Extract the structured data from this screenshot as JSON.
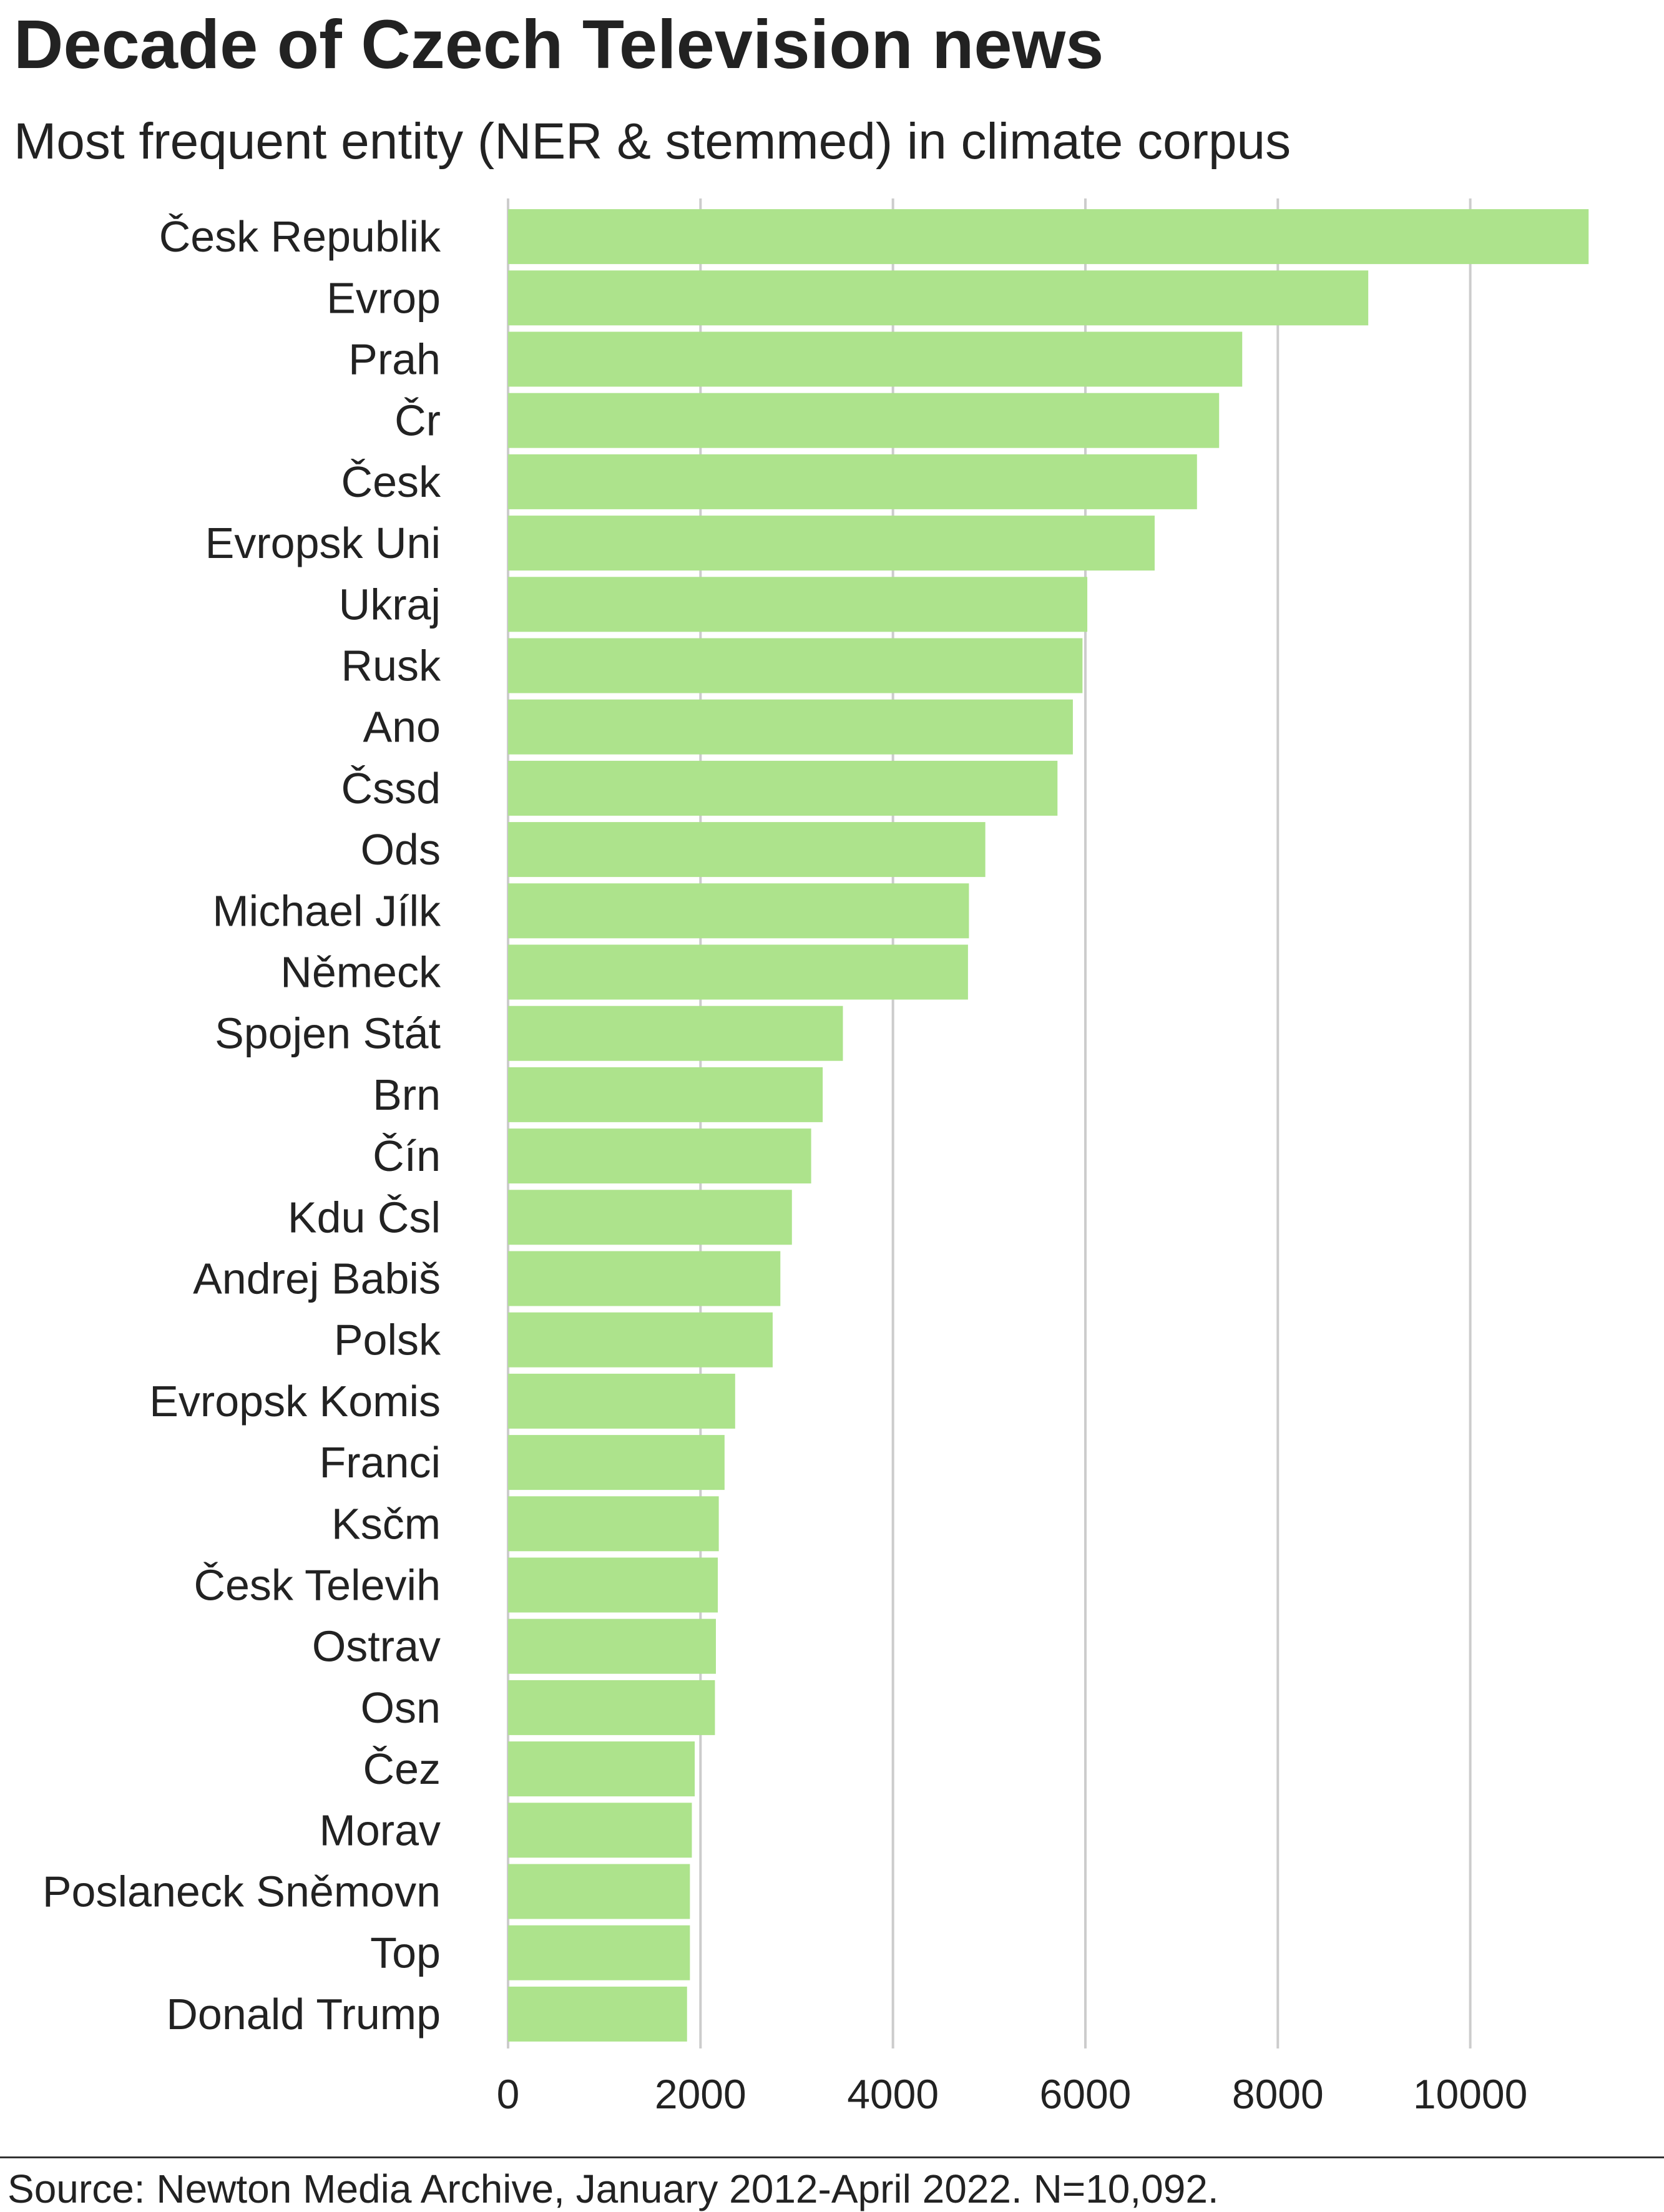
{
  "title": "Decade of Czech Television news",
  "subtitle": "Most frequent entity (NER & stemmed) in climate corpus",
  "source": "Source: Newton Media Archive, January 2012-April 2022. N=10,092.",
  "colors": {
    "bar": "#ade38c",
    "grid": "#cccccc",
    "text": "#222222",
    "background": "#ffffff"
  },
  "chart_data": {
    "type": "bar",
    "orientation": "horizontal",
    "title": "Decade of Czech Television news",
    "subtitle": "Most frequent entity (NER & stemmed) in climate corpus",
    "xlabel": "",
    "ylabel": "",
    "xlim": [
      0,
      11300
    ],
    "x_ticks": [
      0,
      2000,
      4000,
      6000,
      8000,
      10000
    ],
    "x_tick_labels": [
      "0",
      "2000",
      "4000",
      "6000",
      "8000",
      "10000"
    ],
    "grid": "vertical",
    "legend": "none",
    "categories": [
      "Česk Republik",
      "Evrop",
      "Prah",
      "Čr",
      "Česk",
      "Evropsk Uni",
      "Ukraj",
      "Rusk",
      "Ano",
      "Čssd",
      "Ods",
      "Michael Jílk",
      "Německ",
      "Spojen Stát",
      "Brn",
      "Čín",
      "Kdu Čsl",
      "Andrej Babiš",
      "Polsk",
      "Evropsk Komis",
      "Franci",
      "Ksčm",
      "Česk Televih",
      "Ostrav",
      "Osn",
      "Čez",
      "Morav",
      "Poslaneck Sněmovn",
      "Top",
      "Donald Trump"
    ],
    "values": [
      11230,
      8940,
      7630,
      7390,
      7160,
      6720,
      6020,
      5970,
      5870,
      5710,
      4960,
      4790,
      4780,
      3480,
      3270,
      3150,
      2950,
      2830,
      2750,
      2360,
      2250,
      2190,
      2180,
      2160,
      2150,
      1940,
      1910,
      1890,
      1890,
      1860
    ]
  }
}
